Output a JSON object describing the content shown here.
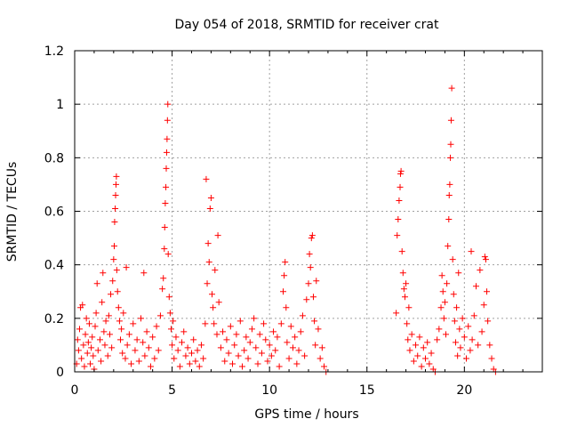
{
  "chart_data": {
    "type": "scatter",
    "title": "Day 054 of 2018, SRMTID for receiver crat",
    "xlabel": "GPS time / hours",
    "ylabel": "SRMTID / TECUs",
    "xlim": [
      0,
      24
    ],
    "ylim": [
      0,
      1.2
    ],
    "xticks": [
      0,
      5,
      10,
      15,
      20
    ],
    "xtick_labels": [
      "0",
      "5",
      "10",
      "15",
      "20"
    ],
    "yticks": [
      0,
      0.2,
      0.4,
      0.6,
      0.8,
      1,
      1.2
    ],
    "ytick_labels": [
      "0",
      "0.2",
      "0.4",
      "0.6",
      "0.8",
      "1",
      "1.2"
    ],
    "grid": true,
    "marker": "+",
    "color": "#ff0000",
    "series": [
      {
        "name": "SRMTID",
        "points": [
          [
            0.1,
            0.03
          ],
          [
            0.15,
            0.12
          ],
          [
            0.2,
            0.08
          ],
          [
            0.25,
            0.16
          ],
          [
            0.3,
            0.24
          ],
          [
            0.35,
            0.05
          ],
          [
            0.4,
            0.25
          ],
          [
            0.45,
            0.1
          ],
          [
            0.5,
            0.02
          ],
          [
            0.55,
            0.14
          ],
          [
            0.6,
            0.2
          ],
          [
            0.65,
            0.07
          ],
          [
            0.7,
            0.11
          ],
          [
            0.75,
            0.18
          ],
          [
            0.8,
            0.03
          ],
          [
            0.85,
            0.09
          ],
          [
            0.9,
            0.13
          ],
          [
            0.95,
            0.06
          ],
          [
            1.0,
            0.01
          ],
          [
            1.05,
            0.17
          ],
          [
            1.1,
            0.22
          ],
          [
            1.15,
            0.33
          ],
          [
            1.2,
            0.08
          ],
          [
            1.3,
            0.12
          ],
          [
            1.35,
            0.04
          ],
          [
            1.4,
            0.26
          ],
          [
            1.45,
            0.37
          ],
          [
            1.5,
            0.15
          ],
          [
            1.55,
            0.1
          ],
          [
            1.6,
            0.19
          ],
          [
            1.7,
            0.06
          ],
          [
            1.75,
            0.21
          ],
          [
            1.8,
            0.14
          ],
          [
            1.85,
            0.29
          ],
          [
            1.9,
            0.09
          ],
          [
            1.95,
            0.34
          ],
          [
            2.0,
            0.42
          ],
          [
            2.03,
            0.47
          ],
          [
            2.05,
            0.56
          ],
          [
            2.08,
            0.61
          ],
          [
            2.1,
            0.66
          ],
          [
            2.12,
            0.7
          ],
          [
            2.14,
            0.73
          ],
          [
            2.16,
            0.38
          ],
          [
            2.2,
            0.3
          ],
          [
            2.25,
            0.24
          ],
          [
            2.3,
            0.19
          ],
          [
            2.35,
            0.12
          ],
          [
            2.4,
            0.16
          ],
          [
            2.45,
            0.07
          ],
          [
            2.5,
            0.22
          ],
          [
            2.6,
            0.05
          ],
          [
            2.65,
            0.39
          ],
          [
            2.7,
            0.1
          ],
          [
            2.8,
            0.14
          ],
          [
            2.9,
            0.03
          ],
          [
            3.0,
            0.18
          ],
          [
            3.1,
            0.08
          ],
          [
            3.2,
            0.12
          ],
          [
            3.3,
            0.04
          ],
          [
            3.4,
            0.2
          ],
          [
            3.5,
            0.11
          ],
          [
            3.55,
            0.37
          ],
          [
            3.6,
            0.06
          ],
          [
            3.7,
            0.15
          ],
          [
            3.8,
            0.09
          ],
          [
            3.9,
            0.02
          ],
          [
            4.0,
            0.13
          ],
          [
            4.1,
            0.05
          ],
          [
            4.2,
            0.17
          ],
          [
            4.3,
            0.08
          ],
          [
            4.4,
            0.21
          ],
          [
            4.5,
            0.31
          ],
          [
            4.55,
            0.35
          ],
          [
            4.6,
            0.46
          ],
          [
            4.62,
            0.54
          ],
          [
            4.65,
            0.63
          ],
          [
            4.68,
            0.69
          ],
          [
            4.7,
            0.76
          ],
          [
            4.72,
            0.82
          ],
          [
            4.74,
            0.87
          ],
          [
            4.76,
            0.94
          ],
          [
            4.78,
            1.0
          ],
          [
            4.8,
            0.44
          ],
          [
            4.85,
            0.28
          ],
          [
            4.9,
            0.22
          ],
          [
            4.95,
            0.16
          ],
          [
            5.0,
            0.1
          ],
          [
            5.05,
            0.19
          ],
          [
            5.1,
            0.05
          ],
          [
            5.2,
            0.13
          ],
          [
            5.3,
            0.08
          ],
          [
            5.4,
            0.02
          ],
          [
            5.5,
            0.11
          ],
          [
            5.6,
            0.15
          ],
          [
            5.7,
            0.06
          ],
          [
            5.8,
            0.09
          ],
          [
            5.9,
            0.03
          ],
          [
            6.0,
            0.07
          ],
          [
            6.1,
            0.12
          ],
          [
            6.2,
            0.04
          ],
          [
            6.3,
            0.08
          ],
          [
            6.4,
            0.02
          ],
          [
            6.5,
            0.1
          ],
          [
            6.6,
            0.05
          ],
          [
            6.7,
            0.18
          ],
          [
            6.75,
            0.72
          ],
          [
            6.8,
            0.33
          ],
          [
            6.85,
            0.48
          ],
          [
            6.9,
            0.41
          ],
          [
            6.95,
            0.61
          ],
          [
            7.0,
            0.65
          ],
          [
            7.05,
            0.29
          ],
          [
            7.1,
            0.24
          ],
          [
            7.15,
            0.18
          ],
          [
            7.2,
            0.38
          ],
          [
            7.3,
            0.14
          ],
          [
            7.35,
            0.51
          ],
          [
            7.4,
            0.26
          ],
          [
            7.5,
            0.09
          ],
          [
            7.6,
            0.15
          ],
          [
            7.7,
            0.04
          ],
          [
            7.8,
            0.12
          ],
          [
            7.9,
            0.07
          ],
          [
            8.0,
            0.17
          ],
          [
            8.1,
            0.03
          ],
          [
            8.2,
            0.1
          ],
          [
            8.3,
            0.14
          ],
          [
            8.4,
            0.06
          ],
          [
            8.5,
            0.19
          ],
          [
            8.6,
            0.02
          ],
          [
            8.7,
            0.08
          ],
          [
            8.8,
            0.13
          ],
          [
            8.9,
            0.05
          ],
          [
            9.0,
            0.11
          ],
          [
            9.1,
            0.16
          ],
          [
            9.2,
            0.2
          ],
          [
            9.3,
            0.09
          ],
          [
            9.4,
            0.03
          ],
          [
            9.5,
            0.14
          ],
          [
            9.6,
            0.07
          ],
          [
            9.7,
            0.18
          ],
          [
            9.8,
            0.12
          ],
          [
            9.9,
            0.04
          ],
          [
            10.0,
            0.1
          ],
          [
            10.1,
            0.06
          ],
          [
            10.2,
            0.15
          ],
          [
            10.3,
            0.08
          ],
          [
            10.4,
            0.13
          ],
          [
            10.5,
            0.02
          ],
          [
            10.6,
            0.18
          ],
          [
            10.7,
            0.3
          ],
          [
            10.75,
            0.36
          ],
          [
            10.8,
            0.41
          ],
          [
            10.85,
            0.24
          ],
          [
            10.9,
            0.11
          ],
          [
            11.0,
            0.05
          ],
          [
            11.1,
            0.17
          ],
          [
            11.2,
            0.09
          ],
          [
            11.3,
            0.13
          ],
          [
            11.4,
            0.03
          ],
          [
            11.5,
            0.08
          ],
          [
            11.6,
            0.15
          ],
          [
            11.7,
            0.21
          ],
          [
            11.8,
            0.06
          ],
          [
            11.9,
            0.27
          ],
          [
            12.0,
            0.33
          ],
          [
            12.05,
            0.44
          ],
          [
            12.1,
            0.39
          ],
          [
            12.15,
            0.5
          ],
          [
            12.2,
            0.51
          ],
          [
            12.25,
            0.28
          ],
          [
            12.3,
            0.19
          ],
          [
            12.35,
            0.1
          ],
          [
            12.4,
            0.34
          ],
          [
            12.5,
            0.16
          ],
          [
            12.6,
            0.05
          ],
          [
            12.7,
            0.09
          ],
          [
            12.8,
            0.02
          ],
          [
            12.9,
            0.0
          ],
          [
            16.5,
            0.22
          ],
          [
            16.55,
            0.51
          ],
          [
            16.6,
            0.57
          ],
          [
            16.65,
            0.64
          ],
          [
            16.7,
            0.69
          ],
          [
            16.72,
            0.74
          ],
          [
            16.75,
            0.75
          ],
          [
            16.8,
            0.45
          ],
          [
            16.85,
            0.37
          ],
          [
            16.9,
            0.31
          ],
          [
            16.95,
            0.28
          ],
          [
            17.0,
            0.33
          ],
          [
            17.05,
            0.18
          ],
          [
            17.1,
            0.12
          ],
          [
            17.15,
            0.24
          ],
          [
            17.2,
            0.08
          ],
          [
            17.3,
            0.14
          ],
          [
            17.4,
            0.04
          ],
          [
            17.5,
            0.1
          ],
          [
            17.6,
            0.06
          ],
          [
            17.7,
            0.13
          ],
          [
            17.8,
            0.02
          ],
          [
            17.9,
            0.09
          ],
          [
            18.0,
            0.05
          ],
          [
            18.1,
            0.11
          ],
          [
            18.2,
            0.03
          ],
          [
            18.3,
            0.07
          ],
          [
            18.4,
            0.01
          ],
          [
            18.5,
            0.0
          ],
          [
            18.6,
            0.12
          ],
          [
            18.7,
            0.16
          ],
          [
            18.8,
            0.24
          ],
          [
            18.85,
            0.36
          ],
          [
            18.9,
            0.3
          ],
          [
            18.95,
            0.2
          ],
          [
            19.0,
            0.26
          ],
          [
            19.05,
            0.14
          ],
          [
            19.1,
            0.33
          ],
          [
            19.15,
            0.47
          ],
          [
            19.2,
            0.57
          ],
          [
            19.22,
            0.66
          ],
          [
            19.25,
            0.7
          ],
          [
            19.28,
            0.8
          ],
          [
            19.3,
            0.85
          ],
          [
            19.32,
            0.94
          ],
          [
            19.35,
            1.06
          ],
          [
            19.4,
            0.42
          ],
          [
            19.45,
            0.29
          ],
          [
            19.5,
            0.19
          ],
          [
            19.55,
            0.11
          ],
          [
            19.6,
            0.24
          ],
          [
            19.65,
            0.06
          ],
          [
            19.7,
            0.37
          ],
          [
            19.75,
            0.16
          ],
          [
            19.8,
            0.09
          ],
          [
            19.9,
            0.2
          ],
          [
            20.0,
            0.13
          ],
          [
            20.1,
            0.05
          ],
          [
            20.2,
            0.17
          ],
          [
            20.3,
            0.08
          ],
          [
            20.35,
            0.45
          ],
          [
            20.4,
            0.12
          ],
          [
            20.5,
            0.21
          ],
          [
            20.6,
            0.32
          ],
          [
            20.7,
            0.1
          ],
          [
            20.8,
            0.38
          ],
          [
            20.9,
            0.15
          ],
          [
            21.0,
            0.25
          ],
          [
            21.05,
            0.43
          ],
          [
            21.1,
            0.42
          ],
          [
            21.15,
            0.3
          ],
          [
            21.2,
            0.19
          ],
          [
            21.3,
            0.1
          ],
          [
            21.4,
            0.05
          ],
          [
            21.5,
            0.01
          ],
          [
            21.6,
            0.0
          ]
        ]
      }
    ]
  }
}
